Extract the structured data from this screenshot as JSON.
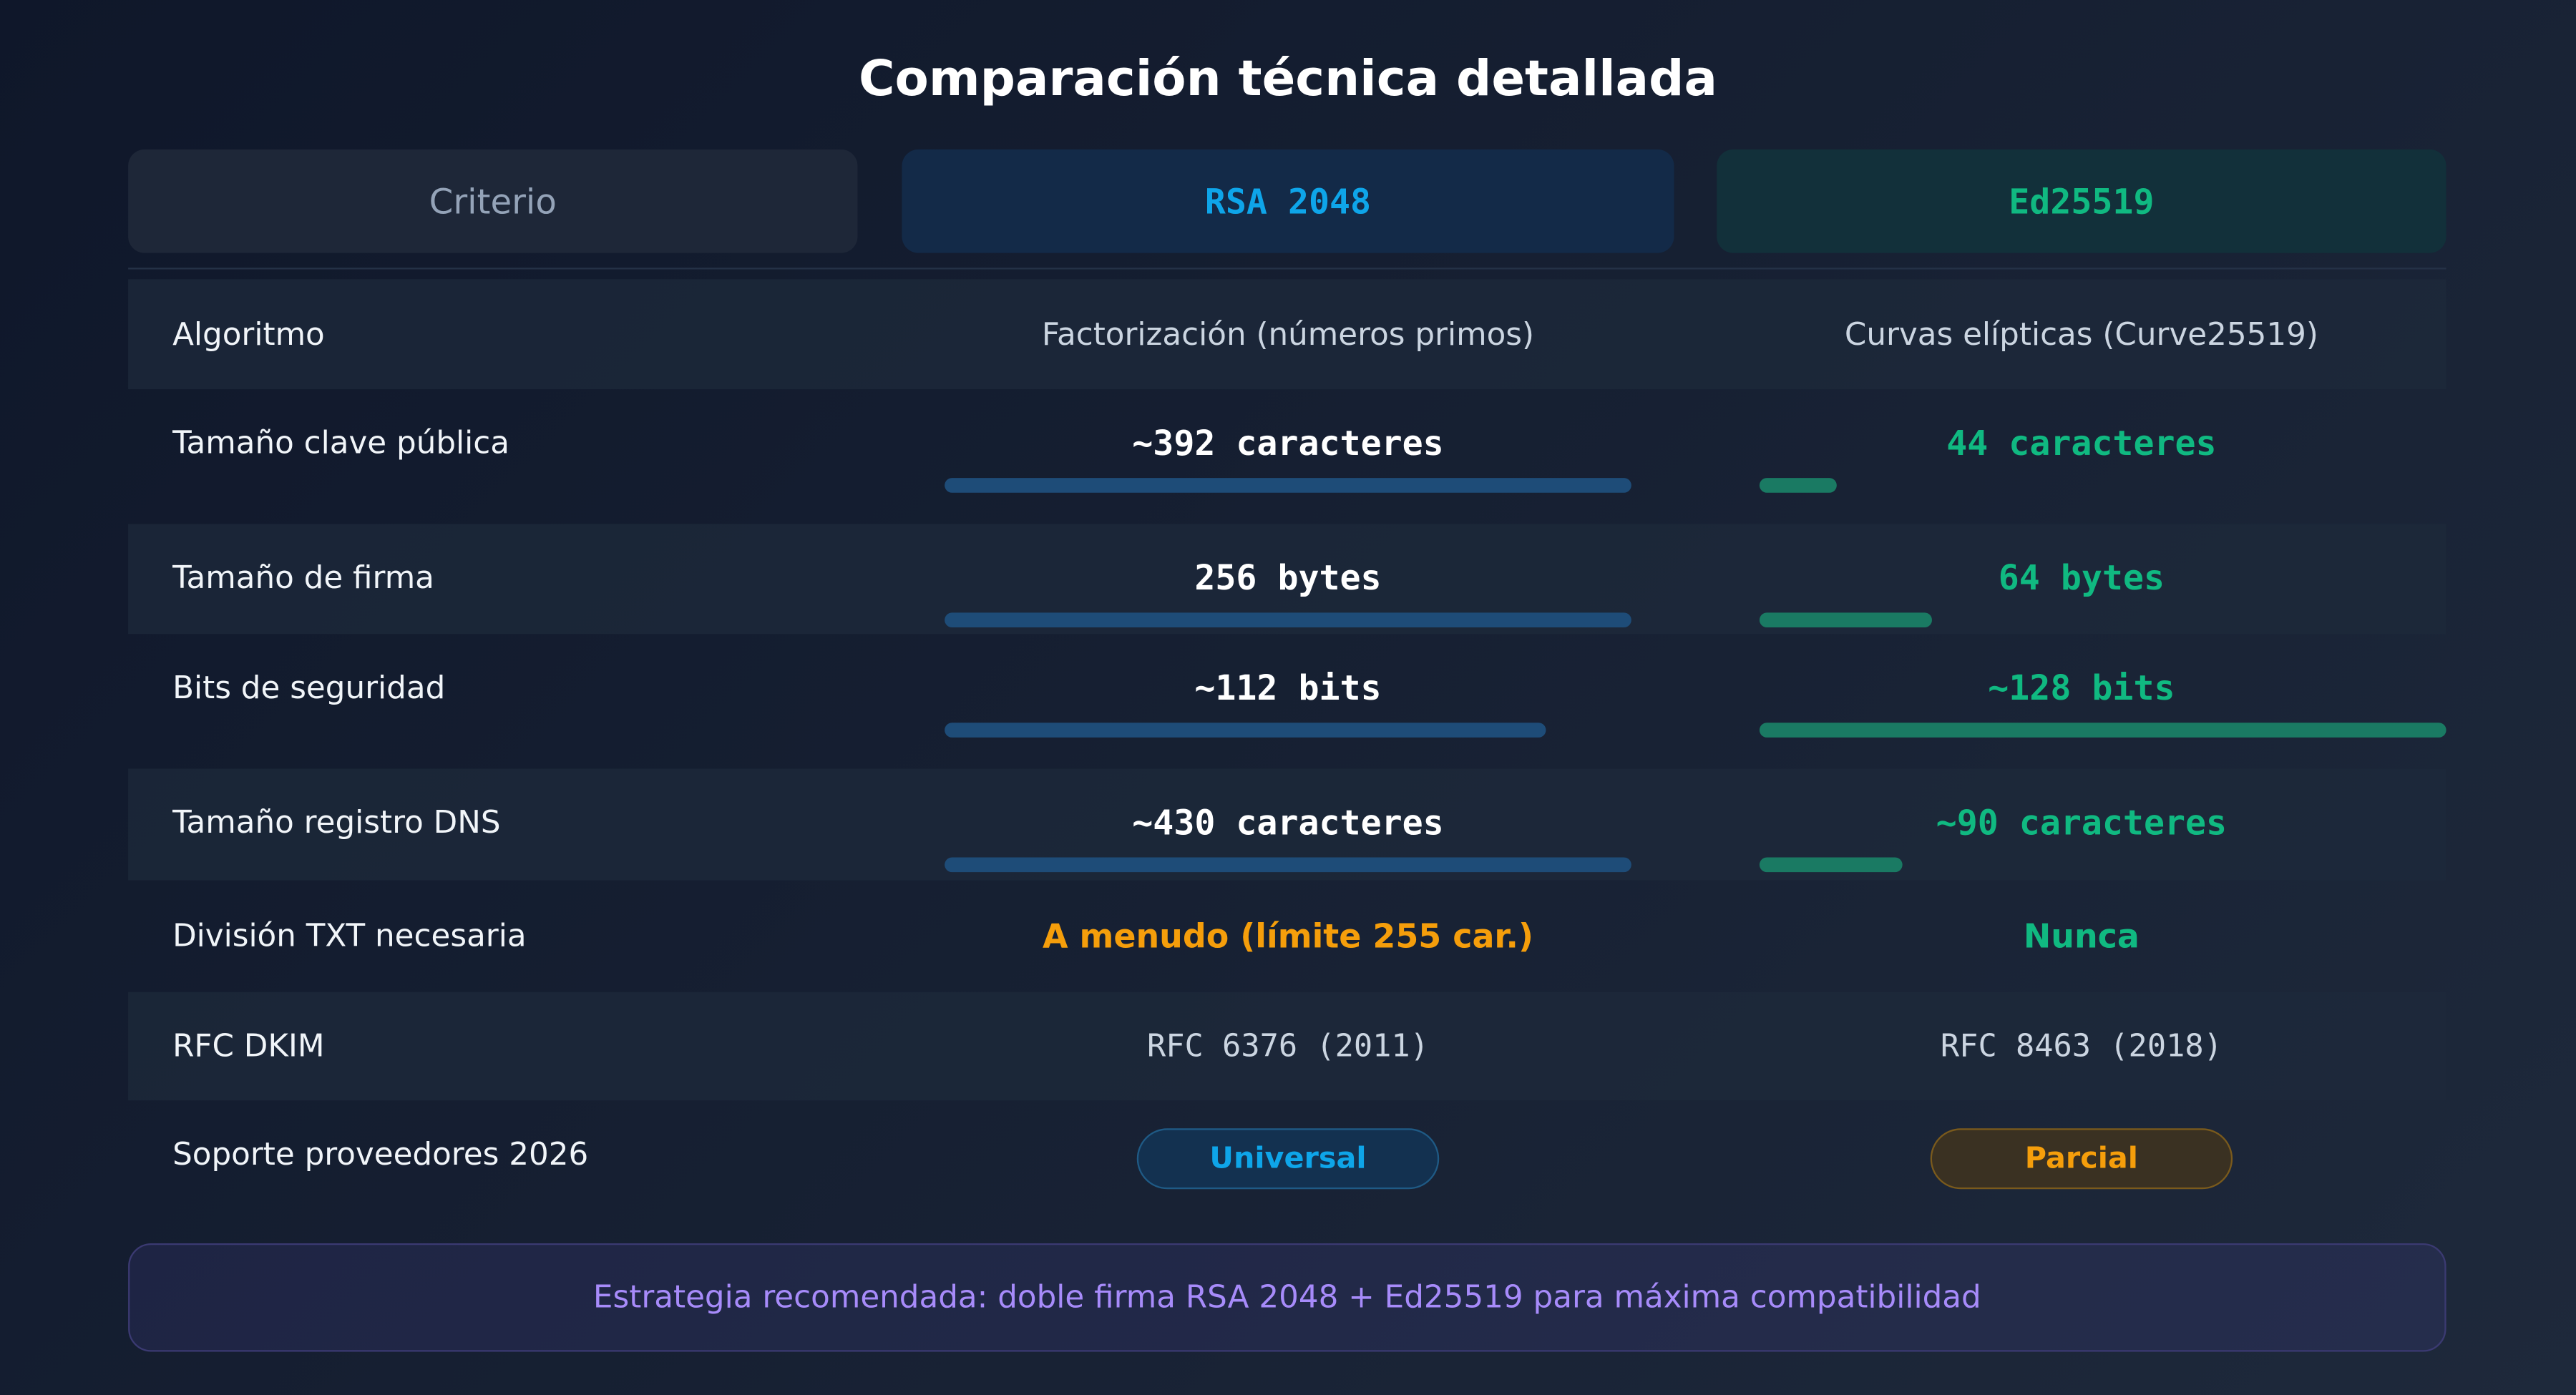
{
  "title": "Comparación técnica detallada",
  "header": [
    "Criterio",
    "RSA 2048",
    "Ed25519"
  ],
  "rows": [
    {
      "label": "Algoritmo",
      "values": [
        "Factorización (números primos)",
        "Curvas elípticas (Curve25519)"
      ]
    },
    {
      "label": "Tamaño clave pública",
      "values": [
        "~392 caracteres",
        "44 caracteres"
      ],
      "bars": [
        392,
        44
      ]
    },
    {
      "label": "Tamaño de firma",
      "values": [
        "256 bytes",
        "64 bytes"
      ],
      "bars": [
        256,
        64
      ]
    },
    {
      "label": "Bits de seguridad",
      "values": [
        "~112 bits",
        "~128 bits"
      ],
      "bars": [
        112,
        128
      ]
    },
    {
      "label": "Tamaño registro DNS",
      "values": [
        "~430 caracteres",
        "~90 caracteres"
      ],
      "bars": [
        430,
        90
      ]
    },
    {
      "label": "División TXT necesaria",
      "values": [
        "A menudo (límite 255 car.)",
        "Nunca"
      ]
    },
    {
      "label": "RFC DKIM",
      "values": [
        "RFC 6376 (2011)",
        "RFC 8463 (2018)"
      ]
    },
    {
      "label": "Soporte proveedores 2026",
      "values": [
        "Universal",
        "Parcial"
      ]
    }
  ],
  "footer": "Estrategia recomendada: doble firma RSA 2048 + Ed25519 para máxima compatibilidad"
}
